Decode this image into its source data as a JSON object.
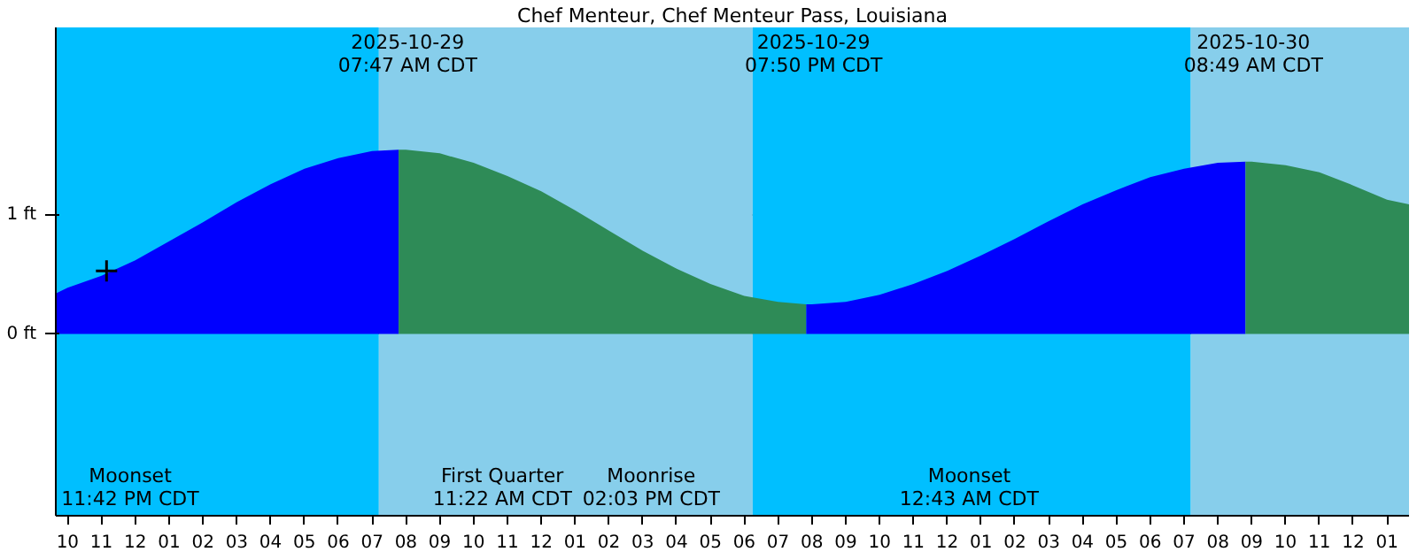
{
  "chart_data": {
    "type": "area",
    "title": "Chef Menteur, Chef Menteur Pass, Louisiana",
    "xlim": [
      "2025-10-28T21:39",
      "2025-10-30T13:39"
    ],
    "ylim": [
      -1.53,
      2.58
    ],
    "xticks": [
      {
        "value": "2025-10-28T22:00",
        "label": "10"
      },
      {
        "value": "2025-10-28T23:00",
        "label": "11"
      },
      {
        "value": "2025-10-29T00:00",
        "label": "12"
      },
      {
        "value": "2025-10-29T01:00",
        "label": "01"
      },
      {
        "value": "2025-10-29T02:00",
        "label": "02"
      },
      {
        "value": "2025-10-29T03:00",
        "label": "03"
      },
      {
        "value": "2025-10-29T04:00",
        "label": "04"
      },
      {
        "value": "2025-10-29T05:00",
        "label": "05"
      },
      {
        "value": "2025-10-29T06:00",
        "label": "06"
      },
      {
        "value": "2025-10-29T07:00",
        "label": "07"
      },
      {
        "value": "2025-10-29T08:00",
        "label": "08"
      },
      {
        "value": "2025-10-29T09:00",
        "label": "09"
      },
      {
        "value": "2025-10-29T10:00",
        "label": "10"
      },
      {
        "value": "2025-10-29T11:00",
        "label": "11"
      },
      {
        "value": "2025-10-29T12:00",
        "label": "12"
      },
      {
        "value": "2025-10-29T13:00",
        "label": "01"
      },
      {
        "value": "2025-10-29T14:00",
        "label": "02"
      },
      {
        "value": "2025-10-29T15:00",
        "label": "03"
      },
      {
        "value": "2025-10-29T16:00",
        "label": "04"
      },
      {
        "value": "2025-10-29T17:00",
        "label": "05"
      },
      {
        "value": "2025-10-29T18:00",
        "label": "06"
      },
      {
        "value": "2025-10-29T19:00",
        "label": "07"
      },
      {
        "value": "2025-10-29T20:00",
        "label": "08"
      },
      {
        "value": "2025-10-29T21:00",
        "label": "09"
      },
      {
        "value": "2025-10-29T22:00",
        "label": "10"
      },
      {
        "value": "2025-10-29T23:00",
        "label": "11"
      },
      {
        "value": "2025-10-30T00:00",
        "label": "12"
      },
      {
        "value": "2025-10-30T01:00",
        "label": "01"
      },
      {
        "value": "2025-10-30T02:00",
        "label": "02"
      },
      {
        "value": "2025-10-30T03:00",
        "label": "03"
      },
      {
        "value": "2025-10-30T04:00",
        "label": "04"
      },
      {
        "value": "2025-10-30T05:00",
        "label": "05"
      },
      {
        "value": "2025-10-30T06:00",
        "label": "06"
      },
      {
        "value": "2025-10-30T07:00",
        "label": "07"
      },
      {
        "value": "2025-10-30T08:00",
        "label": "08"
      },
      {
        "value": "2025-10-30T09:00",
        "label": "09"
      },
      {
        "value": "2025-10-30T10:00",
        "label": "10"
      },
      {
        "value": "2025-10-30T11:00",
        "label": "11"
      },
      {
        "value": "2025-10-30T12:00",
        "label": "12"
      },
      {
        "value": "2025-10-30T13:00",
        "label": "01"
      }
    ],
    "yticks": [
      {
        "value": 0,
        "label": "0 ft"
      },
      {
        "value": 1,
        "label": "1 ft"
      }
    ],
    "grid": "y",
    "bands": [
      {
        "axis": "x",
        "from": "2025-10-28T21:39",
        "to": "2025-10-29T07:12",
        "label": null,
        "color": "#00bfff"
      },
      {
        "axis": "x",
        "from": "2025-10-29T07:12",
        "to": "2025-10-29T18:15",
        "label": null,
        "color": "#87ceeb"
      },
      {
        "axis": "x",
        "from": "2025-10-29T18:15",
        "to": "2025-10-30T07:12",
        "label": null,
        "color": "#00bfff"
      },
      {
        "axis": "x",
        "from": "2025-10-30T07:12",
        "to": "2025-10-30T13:39",
        "label": null,
        "color": "#87ceeb"
      }
    ],
    "series": [
      {
        "color": "#0000ff",
        "x": [
          "2025-10-28T21:39",
          "2025-10-28T22:00",
          "2025-10-28T23:00",
          "2025-10-29T00:00",
          "2025-10-29T01:00",
          "2025-10-29T02:00",
          "2025-10-29T03:00",
          "2025-10-29T04:00",
          "2025-10-29T05:00",
          "2025-10-29T06:00",
          "2025-10-29T07:00",
          "2025-10-29T07:47"
        ],
        "values": [
          0.34,
          0.39,
          0.49,
          0.62,
          0.78,
          0.94,
          1.11,
          1.26,
          1.39,
          1.48,
          1.54,
          1.55
        ]
      },
      {
        "color": "#2e8b57",
        "x": [
          "2025-10-29T07:47",
          "2025-10-29T08:00",
          "2025-10-29T09:00",
          "2025-10-29T10:00",
          "2025-10-29T11:00",
          "2025-10-29T12:00",
          "2025-10-29T13:00",
          "2025-10-29T14:00",
          "2025-10-29T15:00",
          "2025-10-29T16:00",
          "2025-10-29T17:00",
          "2025-10-29T18:00",
          "2025-10-29T19:00",
          "2025-10-29T19:50"
        ],
        "values": [
          1.55,
          1.55,
          1.52,
          1.44,
          1.33,
          1.2,
          1.04,
          0.87,
          0.7,
          0.55,
          0.42,
          0.32,
          0.27,
          0.25
        ]
      },
      {
        "color": "#0000ff",
        "x": [
          "2025-10-29T19:50",
          "2025-10-29T20:00",
          "2025-10-29T21:00",
          "2025-10-29T22:00",
          "2025-10-29T23:00",
          "2025-10-30T00:00",
          "2025-10-30T01:00",
          "2025-10-30T02:00",
          "2025-10-30T03:00",
          "2025-10-30T04:00",
          "2025-10-30T05:00",
          "2025-10-30T06:00",
          "2025-10-30T07:00",
          "2025-10-30T08:00",
          "2025-10-30T08:49"
        ],
        "values": [
          0.25,
          0.25,
          0.27,
          0.33,
          0.42,
          0.53,
          0.66,
          0.8,
          0.95,
          1.09,
          1.21,
          1.32,
          1.39,
          1.44,
          1.45
        ]
      },
      {
        "color": "#2e8b57",
        "x": [
          "2025-10-30T08:49",
          "2025-10-30T09:00",
          "2025-10-30T10:00",
          "2025-10-30T11:00",
          "2025-10-30T12:00",
          "2025-10-30T13:00",
          "2025-10-30T13:39"
        ],
        "values": [
          1.45,
          1.45,
          1.42,
          1.36,
          1.25,
          1.13,
          1.09
        ]
      },
      {
        "type": "scatter",
        "marker": "cross",
        "color": "#000000",
        "x": [
          "2025-10-28T23:09"
        ],
        "values": [
          0.53
        ]
      }
    ],
    "annotations": [
      "2025-10-29\n07:47 AM CDT",
      "2025-10-29\n07:50 PM CDT",
      "2025-10-30\n08:49 AM CDT",
      "Moonset\n11:42 PM CDT",
      "First Quarter\n11:22 AM CDT",
      "Moonrise\n02:03 PM CDT",
      "Moonset\n12:43 AM CDT"
    ]
  }
}
